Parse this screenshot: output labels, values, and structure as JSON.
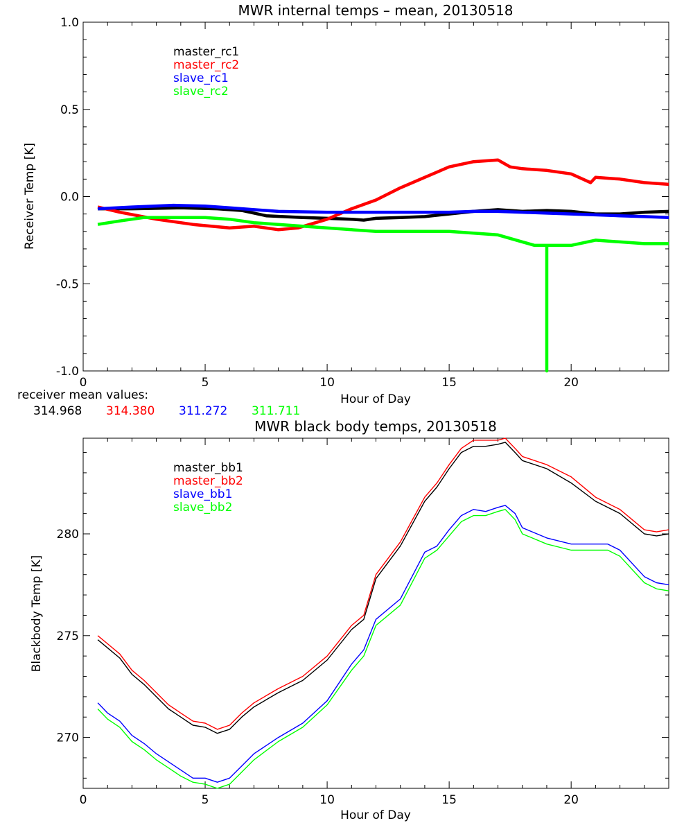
{
  "chart_data": [
    {
      "type": "line",
      "title": "MWR internal temps – mean, 20130518",
      "xlabel": "Hour of Day",
      "ylabel": "Receiver Temp [K]",
      "xlim": [
        0,
        24
      ],
      "ylim": [
        -1.0,
        1.0
      ],
      "xticks": [
        0,
        5,
        10,
        15,
        20
      ],
      "yticks": [
        "-1.0",
        "-0.5",
        "0.0",
        "0.5",
        "1.0"
      ],
      "yticks_values": [
        -1.0,
        -0.5,
        0.0,
        0.5,
        1.0
      ],
      "legend_position": "top-left",
      "series": [
        {
          "name": "master_rc1",
          "color": "#000000",
          "x": [
            0.6,
            2,
            4,
            5.5,
            6.5,
            7.5,
            9,
            10,
            11,
            11.5,
            12,
            13,
            14,
            15,
            16,
            17,
            18,
            19,
            20,
            21,
            22,
            23,
            24
          ],
          "y": [
            -0.07,
            -0.07,
            -0.065,
            -0.07,
            -0.08,
            -0.11,
            -0.12,
            -0.125,
            -0.13,
            -0.135,
            -0.125,
            -0.12,
            -0.115,
            -0.1,
            -0.085,
            -0.075,
            -0.085,
            -0.08,
            -0.085,
            -0.1,
            -0.1,
            -0.09,
            -0.085
          ]
        },
        {
          "name": "master_rc2",
          "color": "#ff0000",
          "x": [
            0.6,
            1.5,
            3,
            4.5,
            6,
            7,
            8,
            8.8,
            10,
            11,
            12,
            13,
            14,
            15,
            16,
            17,
            17.5,
            18,
            19,
            20,
            20.8,
            21,
            22,
            23,
            24
          ],
          "y": [
            -0.06,
            -0.09,
            -0.13,
            -0.16,
            -0.18,
            -0.17,
            -0.19,
            -0.18,
            -0.13,
            -0.07,
            -0.02,
            0.05,
            0.11,
            0.17,
            0.2,
            0.21,
            0.17,
            0.16,
            0.15,
            0.13,
            0.08,
            0.11,
            0.1,
            0.08,
            0.07
          ]
        },
        {
          "name": "slave_rc1",
          "color": "#0000ff",
          "x": [
            0.6,
            2,
            3.7,
            5,
            6,
            7,
            8,
            10,
            12,
            14,
            15,
            16,
            17,
            18,
            19,
            20,
            21,
            22,
            23,
            24
          ],
          "y": [
            -0.07,
            -0.06,
            -0.05,
            -0.055,
            -0.065,
            -0.075,
            -0.085,
            -0.09,
            -0.09,
            -0.09,
            -0.09,
            -0.085,
            -0.085,
            -0.09,
            -0.095,
            -0.1,
            -0.105,
            -0.11,
            -0.115,
            -0.12
          ]
        },
        {
          "name": "slave_rc2",
          "color": "#00ff00",
          "x": [
            0.6,
            1.5,
            2.5,
            4,
            5,
            6,
            7,
            8,
            9,
            10,
            12,
            14,
            15,
            16,
            17,
            18,
            18.5,
            19,
            19.0001,
            19.0002,
            20,
            21,
            22,
            23,
            24
          ],
          "y": [
            -0.16,
            -0.14,
            -0.12,
            -0.12,
            -0.12,
            -0.13,
            -0.15,
            -0.16,
            -0.17,
            -0.18,
            -0.2,
            -0.2,
            -0.2,
            -0.21,
            -0.22,
            -0.26,
            -0.28,
            -0.28,
            -1.05,
            -0.28,
            -0.28,
            -0.25,
            -0.26,
            -0.27,
            -0.27
          ]
        }
      ],
      "annotation": {
        "label": "receiver mean values:",
        "values": [
          {
            "text": "314.968",
            "color": "#000000"
          },
          {
            "text": "314.380",
            "color": "#ff0000"
          },
          {
            "text": "311.272",
            "color": "#0000ff"
          },
          {
            "text": "311.711",
            "color": "#00ff00"
          }
        ]
      }
    },
    {
      "type": "line",
      "title": "MWR black body temps, 20130518",
      "xlabel": "Hour of Day",
      "ylabel": "Blackbody Temp [K]",
      "xlim": [
        0,
        24
      ],
      "ylim": [
        267.5,
        284.7
      ],
      "xticks": [
        0,
        5,
        10,
        15,
        20
      ],
      "yticks": [
        "270",
        "275",
        "280"
      ],
      "yticks_values": [
        270,
        275,
        280
      ],
      "legend_position": "top-left",
      "series": [
        {
          "name": "master_bb1",
          "color": "#000000",
          "x": [
            0.6,
            1,
            1.5,
            2,
            2.5,
            3,
            3.5,
            4,
            4.5,
            5,
            5.5,
            6,
            6.5,
            7,
            8,
            9,
            10,
            11,
            11.5,
            12,
            13,
            14,
            14.5,
            15,
            15.5,
            16,
            16.5,
            17,
            17.3,
            17.7,
            18,
            19,
            20,
            21,
            22,
            23,
            23.5,
            24
          ],
          "y": [
            274.8,
            274.4,
            273.9,
            273.1,
            272.6,
            272.0,
            271.4,
            271.0,
            270.6,
            270.5,
            270.2,
            270.4,
            271.0,
            271.5,
            272.2,
            272.8,
            273.8,
            275.3,
            275.8,
            277.8,
            279.4,
            281.6,
            282.3,
            283.2,
            284.0,
            284.3,
            284.3,
            284.4,
            284.5,
            284.0,
            283.6,
            283.2,
            282.5,
            281.6,
            281.0,
            280.0,
            279.9,
            280.0
          ]
        },
        {
          "name": "master_bb2",
          "color": "#ff0000",
          "x": [
            0.6,
            1,
            1.5,
            2,
            2.5,
            3,
            3.5,
            4,
            4.5,
            5,
            5.5,
            6,
            6.5,
            7,
            8,
            9,
            10,
            11,
            11.5,
            12,
            13,
            14,
            14.5,
            15,
            15.5,
            16,
            16.5,
            17,
            17.3,
            17.7,
            18,
            19,
            20,
            21,
            22,
            23,
            23.5,
            24
          ],
          "y": [
            275.0,
            274.6,
            274.1,
            273.3,
            272.8,
            272.2,
            271.6,
            271.2,
            270.8,
            270.7,
            270.4,
            270.6,
            271.2,
            271.7,
            272.4,
            273.0,
            274.0,
            275.5,
            276.0,
            278.0,
            279.6,
            281.8,
            282.5,
            283.4,
            284.2,
            284.6,
            284.6,
            284.6,
            284.7,
            284.2,
            283.8,
            283.4,
            282.8,
            281.8,
            281.2,
            280.2,
            280.1,
            280.2
          ]
        },
        {
          "name": "slave_bb1",
          "color": "#0000ff",
          "x": [
            0.6,
            1,
            1.5,
            2,
            2.5,
            3,
            3.5,
            4,
            4.5,
            5,
            5.5,
            6,
            6.5,
            7,
            8,
            9,
            10,
            11,
            11.5,
            12,
            13,
            14,
            14.5,
            15,
            15.5,
            16,
            16.5,
            17,
            17.3,
            17.7,
            18,
            19,
            20,
            21,
            21.5,
            22,
            23,
            23.5,
            24
          ],
          "y": [
            271.7,
            271.2,
            270.8,
            270.1,
            269.7,
            269.2,
            268.8,
            268.4,
            268.0,
            268.0,
            267.8,
            268.0,
            268.6,
            269.2,
            270.0,
            270.7,
            271.8,
            273.6,
            274.3,
            275.8,
            276.8,
            279.1,
            279.4,
            280.2,
            280.9,
            281.2,
            281.1,
            281.3,
            281.4,
            281.0,
            280.3,
            279.8,
            279.5,
            279.5,
            279.5,
            279.2,
            277.9,
            277.6,
            277.5
          ]
        },
        {
          "name": "slave_bb2",
          "color": "#00ff00",
          "x": [
            0.6,
            1,
            1.5,
            2,
            2.5,
            3,
            3.5,
            4,
            4.5,
            5,
            5.5,
            6,
            6.5,
            7,
            8,
            9,
            10,
            11,
            11.5,
            12,
            13,
            14,
            14.5,
            15,
            15.5,
            16,
            16.5,
            17,
            17.3,
            17.7,
            18,
            19,
            20,
            21,
            21.5,
            22,
            23,
            23.5,
            24
          ],
          "y": [
            271.4,
            270.9,
            270.5,
            269.8,
            269.4,
            268.9,
            268.5,
            268.1,
            267.8,
            267.7,
            267.5,
            267.7,
            268.3,
            268.9,
            269.8,
            270.5,
            271.6,
            273.3,
            274.0,
            275.5,
            276.5,
            278.8,
            279.2,
            279.9,
            280.6,
            280.9,
            280.9,
            281.1,
            281.2,
            280.7,
            280.0,
            279.5,
            279.2,
            279.2,
            279.2,
            278.9,
            277.6,
            277.3,
            277.2
          ]
        }
      ]
    }
  ]
}
